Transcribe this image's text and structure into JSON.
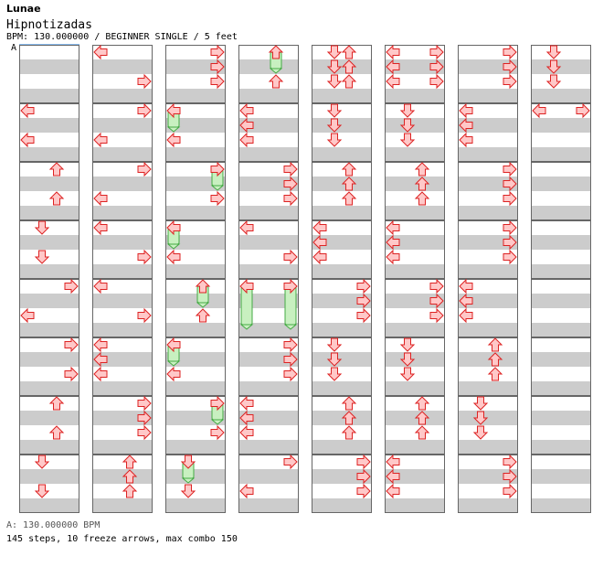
{
  "header": {
    "artist": "Lunae",
    "title": "Hipnotizadas",
    "info": "BPM: 130.000000 / BEGINNER SINGLE / 5 feet",
    "bpm_marker": "A"
  },
  "footer": {
    "bpm_line": "A: 130.000000 BPM",
    "stats": "145 steps, 10 freeze arrows, max combo 150"
  },
  "colors": {
    "arrow_fill": "#ffc8c8",
    "arrow_stroke": "#dd2222",
    "freeze_fill": "#c8f0c0",
    "freeze_stroke": "#44aa44",
    "stripe": "#cccccc",
    "frame": "#666666"
  },
  "notation": "Lanes: L=left, D=down, U=up, R=right. Each measure has 4 beats (rows 0-3) with an optional half-beat step (row e.g. 1.5). Columns of measures are read top to bottom, then left to right.",
  "measures": [
    {
      "c": 0,
      "r": 0,
      "notes": []
    },
    {
      "c": 0,
      "r": 1,
      "notes": [
        [
          0,
          "L"
        ],
        [
          2,
          "L"
        ]
      ]
    },
    {
      "c": 0,
      "r": 2,
      "notes": [
        [
          0,
          "U"
        ],
        [
          2,
          "U"
        ]
      ]
    },
    {
      "c": 0,
      "r": 3,
      "notes": [
        [
          0,
          "D"
        ],
        [
          2,
          "D"
        ]
      ]
    },
    {
      "c": 0,
      "r": 4,
      "notes": [
        [
          0,
          "R"
        ],
        [
          2,
          "L"
        ]
      ]
    },
    {
      "c": 0,
      "r": 5,
      "notes": [
        [
          0,
          "R"
        ],
        [
          2,
          "R"
        ]
      ]
    },
    {
      "c": 0,
      "r": 6,
      "notes": [
        [
          0,
          "U"
        ],
        [
          2,
          "U"
        ]
      ]
    },
    {
      "c": 0,
      "r": 7,
      "notes": [
        [
          0,
          "D"
        ],
        [
          2,
          "D"
        ]
      ]
    },
    {
      "c": 1,
      "r": 0,
      "notes": [
        [
          0,
          "L"
        ],
        [
          2,
          "R"
        ]
      ]
    },
    {
      "c": 1,
      "r": 1,
      "notes": [
        [
          0,
          "R"
        ],
        [
          2,
          "L"
        ]
      ]
    },
    {
      "c": 1,
      "r": 2,
      "notes": [
        [
          0,
          "R"
        ],
        [
          2,
          "L"
        ]
      ]
    },
    {
      "c": 1,
      "r": 3,
      "notes": [
        [
          0,
          "L"
        ],
        [
          2,
          "R"
        ]
      ]
    },
    {
      "c": 1,
      "r": 4,
      "notes": [
        [
          0,
          "L"
        ],
        [
          2,
          "R"
        ]
      ]
    },
    {
      "c": 1,
      "r": 5,
      "notes": [
        [
          0,
          "L"
        ],
        [
          1,
          "L"
        ],
        [
          2,
          "L"
        ]
      ]
    },
    {
      "c": 1,
      "r": 6,
      "notes": [
        [
          0,
          "R"
        ],
        [
          1,
          "R"
        ],
        [
          2,
          "R"
        ]
      ]
    },
    {
      "c": 1,
      "r": 7,
      "notes": [
        [
          0,
          "U"
        ],
        [
          1,
          "U"
        ],
        [
          2,
          "U"
        ]
      ]
    },
    {
      "c": 2,
      "r": 0,
      "notes": [
        [
          0,
          "R"
        ],
        [
          1,
          "R"
        ],
        [
          2,
          "R"
        ]
      ]
    },
    {
      "c": 2,
      "r": 1,
      "notes": [
        [
          0,
          "L"
        ],
        [
          2,
          "L"
        ]
      ],
      "holds": [
        [
          "L",
          0,
          1
        ]
      ]
    },
    {
      "c": 2,
      "r": 2,
      "notes": [
        [
          0,
          "R"
        ],
        [
          2,
          "R"
        ]
      ],
      "holds": [
        [
          "R",
          0,
          1
        ]
      ]
    },
    {
      "c": 2,
      "r": 3,
      "notes": [
        [
          0,
          "L"
        ],
        [
          2,
          "L"
        ]
      ],
      "holds": [
        [
          "L",
          0,
          1
        ]
      ]
    },
    {
      "c": 2,
      "r": 4,
      "notes": [
        [
          0,
          "U"
        ],
        [
          2,
          "U"
        ]
      ],
      "holds": [
        [
          "U",
          0,
          1
        ]
      ]
    },
    {
      "c": 2,
      "r": 5,
      "notes": [
        [
          0,
          "L"
        ],
        [
          2,
          "L"
        ]
      ],
      "holds": [
        [
          "L",
          0,
          1
        ]
      ]
    },
    {
      "c": 2,
      "r": 6,
      "notes": [
        [
          0,
          "R"
        ],
        [
          2,
          "R"
        ]
      ],
      "holds": [
        [
          "R",
          0,
          1
        ]
      ]
    },
    {
      "c": 2,
      "r": 7,
      "notes": [
        [
          0,
          "D"
        ],
        [
          2,
          "D"
        ]
      ],
      "holds": [
        [
          "D",
          0,
          1
        ]
      ]
    },
    {
      "c": 3,
      "r": 0,
      "notes": [
        [
          0,
          "U"
        ],
        [
          2,
          "U"
        ]
      ],
      "holds": [
        [
          "U",
          0,
          1
        ]
      ]
    },
    {
      "c": 3,
      "r": 1,
      "notes": [
        [
          0,
          "L"
        ],
        [
          1,
          "L"
        ],
        [
          2,
          "L"
        ]
      ]
    },
    {
      "c": 3,
      "r": 2,
      "notes": [
        [
          0,
          "R"
        ],
        [
          1,
          "R"
        ],
        [
          2,
          "R"
        ]
      ]
    },
    {
      "c": 3,
      "r": 3,
      "notes": [
        [
          0,
          "L"
        ],
        [
          2,
          "R"
        ]
      ]
    },
    {
      "c": 3,
      "r": 4,
      "notes": [
        [
          0,
          "L"
        ],
        [
          0,
          "R"
        ]
      ],
      "holds": [
        [
          "L",
          0,
          2.5
        ],
        [
          "R",
          0,
          2.5
        ]
      ]
    },
    {
      "c": 3,
      "r": 5,
      "notes": [
        [
          0,
          "R"
        ],
        [
          1,
          "R"
        ],
        [
          2,
          "R"
        ]
      ]
    },
    {
      "c": 3,
      "r": 6,
      "notes": [
        [
          0,
          "L"
        ],
        [
          1,
          "L"
        ],
        [
          2,
          "L"
        ]
      ]
    },
    {
      "c": 3,
      "r": 7,
      "notes": [
        [
          0,
          "R"
        ],
        [
          2,
          "L"
        ]
      ]
    },
    {
      "c": 4,
      "r": 0,
      "notes": [
        [
          0,
          "D"
        ],
        [
          0,
          "U"
        ],
        [
          1,
          "D"
        ],
        [
          1,
          "U"
        ],
        [
          2,
          "D"
        ],
        [
          2,
          "U"
        ]
      ]
    },
    {
      "c": 4,
      "r": 1,
      "notes": [
        [
          0,
          "D"
        ],
        [
          1,
          "D"
        ],
        [
          2,
          "D"
        ]
      ]
    },
    {
      "c": 4,
      "r": 2,
      "notes": [
        [
          0,
          "U"
        ],
        [
          1,
          "U"
        ],
        [
          2,
          "U"
        ]
      ]
    },
    {
      "c": 4,
      "r": 3,
      "notes": [
        [
          0,
          "L"
        ],
        [
          1,
          "L"
        ],
        [
          2,
          "L"
        ]
      ]
    },
    {
      "c": 4,
      "r": 4,
      "notes": [
        [
          0,
          "R"
        ],
        [
          1,
          "R"
        ],
        [
          2,
          "R"
        ]
      ]
    },
    {
      "c": 4,
      "r": 5,
      "notes": [
        [
          0,
          "D"
        ],
        [
          1,
          "D"
        ],
        [
          2,
          "D"
        ]
      ]
    },
    {
      "c": 4,
      "r": 6,
      "notes": [
        [
          0,
          "U"
        ],
        [
          1,
          "U"
        ],
        [
          2,
          "U"
        ]
      ]
    },
    {
      "c": 4,
      "r": 7,
      "notes": [
        [
          0,
          "R"
        ],
        [
          1,
          "R"
        ],
        [
          2,
          "R"
        ]
      ]
    },
    {
      "c": 5,
      "r": 0,
      "notes": [
        [
          0,
          "L"
        ],
        [
          0,
          "R"
        ],
        [
          1,
          "L"
        ],
        [
          1,
          "R"
        ],
        [
          2,
          "L"
        ],
        [
          2,
          "R"
        ]
      ]
    },
    {
      "c": 5,
      "r": 1,
      "notes": [
        [
          0,
          "D"
        ],
        [
          1,
          "D"
        ],
        [
          2,
          "D"
        ]
      ]
    },
    {
      "c": 5,
      "r": 2,
      "notes": [
        [
          0,
          "U"
        ],
        [
          1,
          "U"
        ],
        [
          2,
          "U"
        ]
      ]
    },
    {
      "c": 5,
      "r": 3,
      "notes": [
        [
          0,
          "L"
        ],
        [
          1,
          "L"
        ],
        [
          2,
          "L"
        ]
      ]
    },
    {
      "c": 5,
      "r": 4,
      "notes": [
        [
          0,
          "R"
        ],
        [
          1,
          "R"
        ],
        [
          2,
          "R"
        ]
      ]
    },
    {
      "c": 5,
      "r": 5,
      "notes": [
        [
          0,
          "D"
        ],
        [
          1,
          "D"
        ],
        [
          2,
          "D"
        ]
      ]
    },
    {
      "c": 5,
      "r": 6,
      "notes": [
        [
          0,
          "U"
        ],
        [
          1,
          "U"
        ],
        [
          2,
          "U"
        ]
      ]
    },
    {
      "c": 5,
      "r": 7,
      "notes": [
        [
          0,
          "L"
        ],
        [
          1,
          "L"
        ],
        [
          2,
          "L"
        ]
      ]
    },
    {
      "c": 6,
      "r": 0,
      "notes": [
        [
          0,
          "R"
        ],
        [
          1,
          "R"
        ],
        [
          2,
          "R"
        ]
      ]
    },
    {
      "c": 6,
      "r": 1,
      "notes": [
        [
          0,
          "L"
        ],
        [
          1,
          "L"
        ],
        [
          2,
          "L"
        ]
      ]
    },
    {
      "c": 6,
      "r": 2,
      "notes": [
        [
          0,
          "R"
        ],
        [
          1,
          "R"
        ],
        [
          2,
          "R"
        ]
      ]
    },
    {
      "c": 6,
      "r": 3,
      "notes": [
        [
          0,
          "R"
        ],
        [
          1,
          "R"
        ],
        [
          2,
          "R"
        ]
      ]
    },
    {
      "c": 6,
      "r": 4,
      "notes": [
        [
          0,
          "L"
        ],
        [
          1,
          "L"
        ],
        [
          2,
          "L"
        ]
      ]
    },
    {
      "c": 6,
      "r": 5,
      "notes": [
        [
          0,
          "U"
        ],
        [
          1,
          "U"
        ],
        [
          2,
          "U"
        ]
      ]
    },
    {
      "c": 6,
      "r": 6,
      "notes": [
        [
          0,
          "D"
        ],
        [
          1,
          "D"
        ],
        [
          2,
          "D"
        ]
      ]
    },
    {
      "c": 6,
      "r": 7,
      "notes": [
        [
          0,
          "R"
        ],
        [
          1,
          "R"
        ],
        [
          2,
          "R"
        ]
      ]
    },
    {
      "c": 7,
      "r": 0,
      "notes": [
        [
          0,
          "D"
        ],
        [
          1,
          "D"
        ],
        [
          2,
          "D"
        ]
      ]
    },
    {
      "c": 7,
      "r": 1,
      "notes": [
        [
          0,
          "L"
        ],
        [
          0,
          "R"
        ]
      ]
    }
  ]
}
